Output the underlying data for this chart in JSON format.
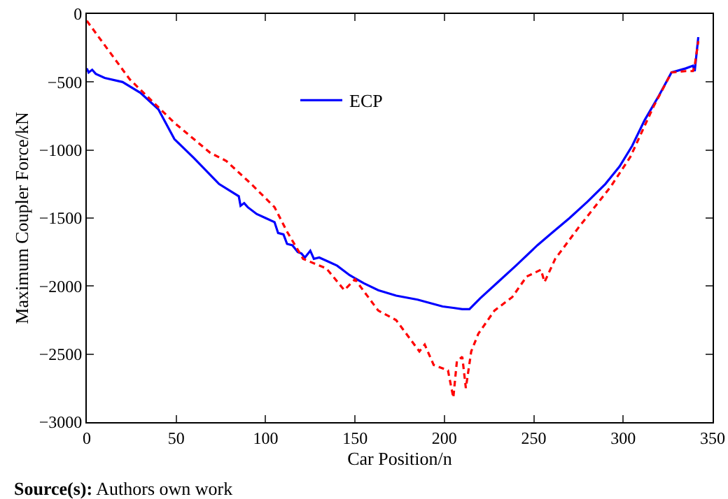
{
  "chart_data": {
    "type": "line",
    "xlabel": "Car Position/n",
    "ylabel": "Maximum Coupler Force/kN",
    "annotations": [
      "Source(s): Authors own work"
    ],
    "xlim": [
      0,
      350
    ],
    "xticks": [
      0,
      50,
      100,
      150,
      200,
      250,
      300,
      350
    ],
    "ylim": [
      -3000,
      0
    ],
    "yticks": [
      -3000,
      -2500,
      -2000,
      -1500,
      -1000,
      -500,
      0
    ],
    "grid": false,
    "legend": "top center",
    "marker": "none",
    "series": [
      {
        "name": "ECP",
        "color": "#0000ff",
        "line_style": "solid",
        "x": [
          0,
          1,
          3,
          5,
          10,
          20,
          30,
          40,
          49,
          60,
          74,
          85,
          86,
          88,
          90,
          95,
          100,
          105,
          107,
          110,
          112,
          115,
          118,
          120,
          122,
          125,
          127,
          130,
          135,
          140,
          147,
          155,
          163,
          173,
          185,
          199,
          205,
          210,
          214,
          220,
          230,
          240,
          252,
          260,
          270,
          280,
          290,
          298,
          305,
          312,
          320,
          327,
          335,
          339,
          340,
          342
        ],
        "values": [
          -400,
          -430,
          -410,
          -440,
          -470,
          -500,
          -580,
          -700,
          -920,
          -1060,
          -1250,
          -1340,
          -1410,
          -1390,
          -1420,
          -1470,
          -1500,
          -1530,
          -1610,
          -1620,
          -1690,
          -1700,
          -1750,
          -1760,
          -1790,
          -1740,
          -1800,
          -1790,
          -1820,
          -1850,
          -1920,
          -1980,
          -2030,
          -2070,
          -2100,
          -2150,
          -2160,
          -2170,
          -2170,
          -2090,
          -1970,
          -1850,
          -1700,
          -1610,
          -1500,
          -1380,
          -1250,
          -1120,
          -970,
          -780,
          -600,
          -430,
          -400,
          -380,
          -420,
          -170
        ]
      },
      {
        "color": "#ff0000",
        "line_style": "dashed",
        "x": [
          0,
          24,
          49,
          69,
          78,
          92,
          105,
          112,
          121,
          134,
          144,
          150,
          163,
          173,
          186,
          189,
          194,
          202,
          205,
          207,
          210,
          212,
          215,
          219,
          228,
          238,
          246,
          254,
          256,
          262,
          275,
          278,
          293,
          304,
          317,
          327,
          335,
          339,
          340,
          342
        ],
        "values": [
          -50,
          -480,
          -800,
          -1020,
          -1080,
          -1250,
          -1420,
          -1600,
          -1800,
          -1870,
          -2030,
          -1950,
          -2180,
          -2250,
          -2480,
          -2430,
          -2580,
          -2620,
          -2820,
          -2550,
          -2520,
          -2750,
          -2480,
          -2350,
          -2180,
          -2080,
          -1930,
          -1880,
          -1970,
          -1800,
          -1570,
          -1520,
          -1270,
          -1050,
          -680,
          -430,
          -420,
          -420,
          -380,
          -200
        ]
      }
    ]
  }
}
